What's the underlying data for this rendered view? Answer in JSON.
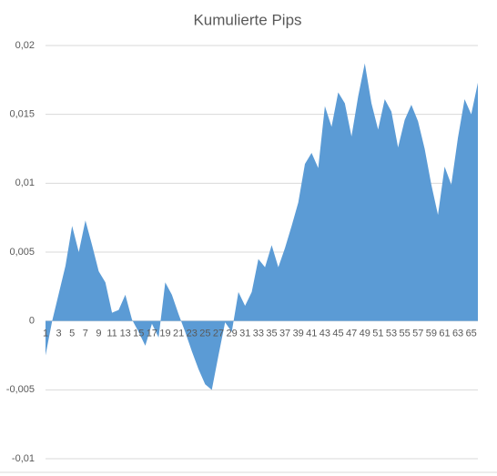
{
  "chart_data": {
    "type": "area",
    "title": "Kumulierte Pips",
    "categories": [
      1,
      null,
      3,
      null,
      5,
      null,
      7,
      null,
      9,
      null,
      11,
      null,
      13,
      null,
      15,
      null,
      17,
      null,
      19,
      null,
      21,
      null,
      23,
      null,
      25,
      null,
      27,
      null,
      29,
      null,
      31,
      null,
      33,
      null,
      35,
      null,
      37,
      null,
      39,
      null,
      41,
      null,
      43,
      null,
      45,
      null,
      47,
      null,
      49,
      null,
      51,
      null,
      53,
      null,
      55,
      null,
      57,
      null,
      59,
      null,
      61,
      null,
      63,
      null,
      65,
      null
    ],
    "values": [
      -0.0025,
      0,
      0.002,
      0.004,
      0.0069,
      0.005,
      0.0073,
      0.0055,
      0.0036,
      0.0028,
      0.0006,
      0.0008,
      0.0019,
      0.0001,
      -0.0008,
      -0.0018,
      -0.0002,
      -0.0012,
      0.0028,
      0.0019,
      0.0005,
      -0.0008,
      -0.0022,
      -0.0035,
      -0.0046,
      -0.005,
      -0.0025,
      -0.0001,
      -0.0008,
      0.0021,
      0.0011,
      0.0021,
      0.0045,
      0.0039,
      0.0055,
      0.0039,
      0.0053,
      0.0069,
      0.0086,
      0.0114,
      0.0122,
      0.0111,
      0.0156,
      0.0141,
      0.0166,
      0.0158,
      0.0134,
      0.0163,
      0.0187,
      0.0158,
      0.0139,
      0.0161,
      0.0152,
      0.0126,
      0.0146,
      0.0157,
      0.0145,
      0.0125,
      0.0099,
      0.0077,
      0.0112,
      0.0099,
      0.0133,
      0.0161,
      0.015,
      0.0173
    ],
    "color": "#5b9bd5",
    "ylim": [
      -0.01,
      0.02
    ],
    "yticks": [
      {
        "value": -0.01,
        "label": "-0,01"
      },
      {
        "value": -0.005,
        "label": "-0,005"
      },
      0,
      {
        "value": 0.005,
        "label": "0,005"
      },
      {
        "value": 0.01,
        "label": "0,01"
      },
      {
        "value": 0.015,
        "label": "0,015"
      },
      {
        "value": 0.02,
        "label": "0,02"
      }
    ],
    "grid": true
  }
}
